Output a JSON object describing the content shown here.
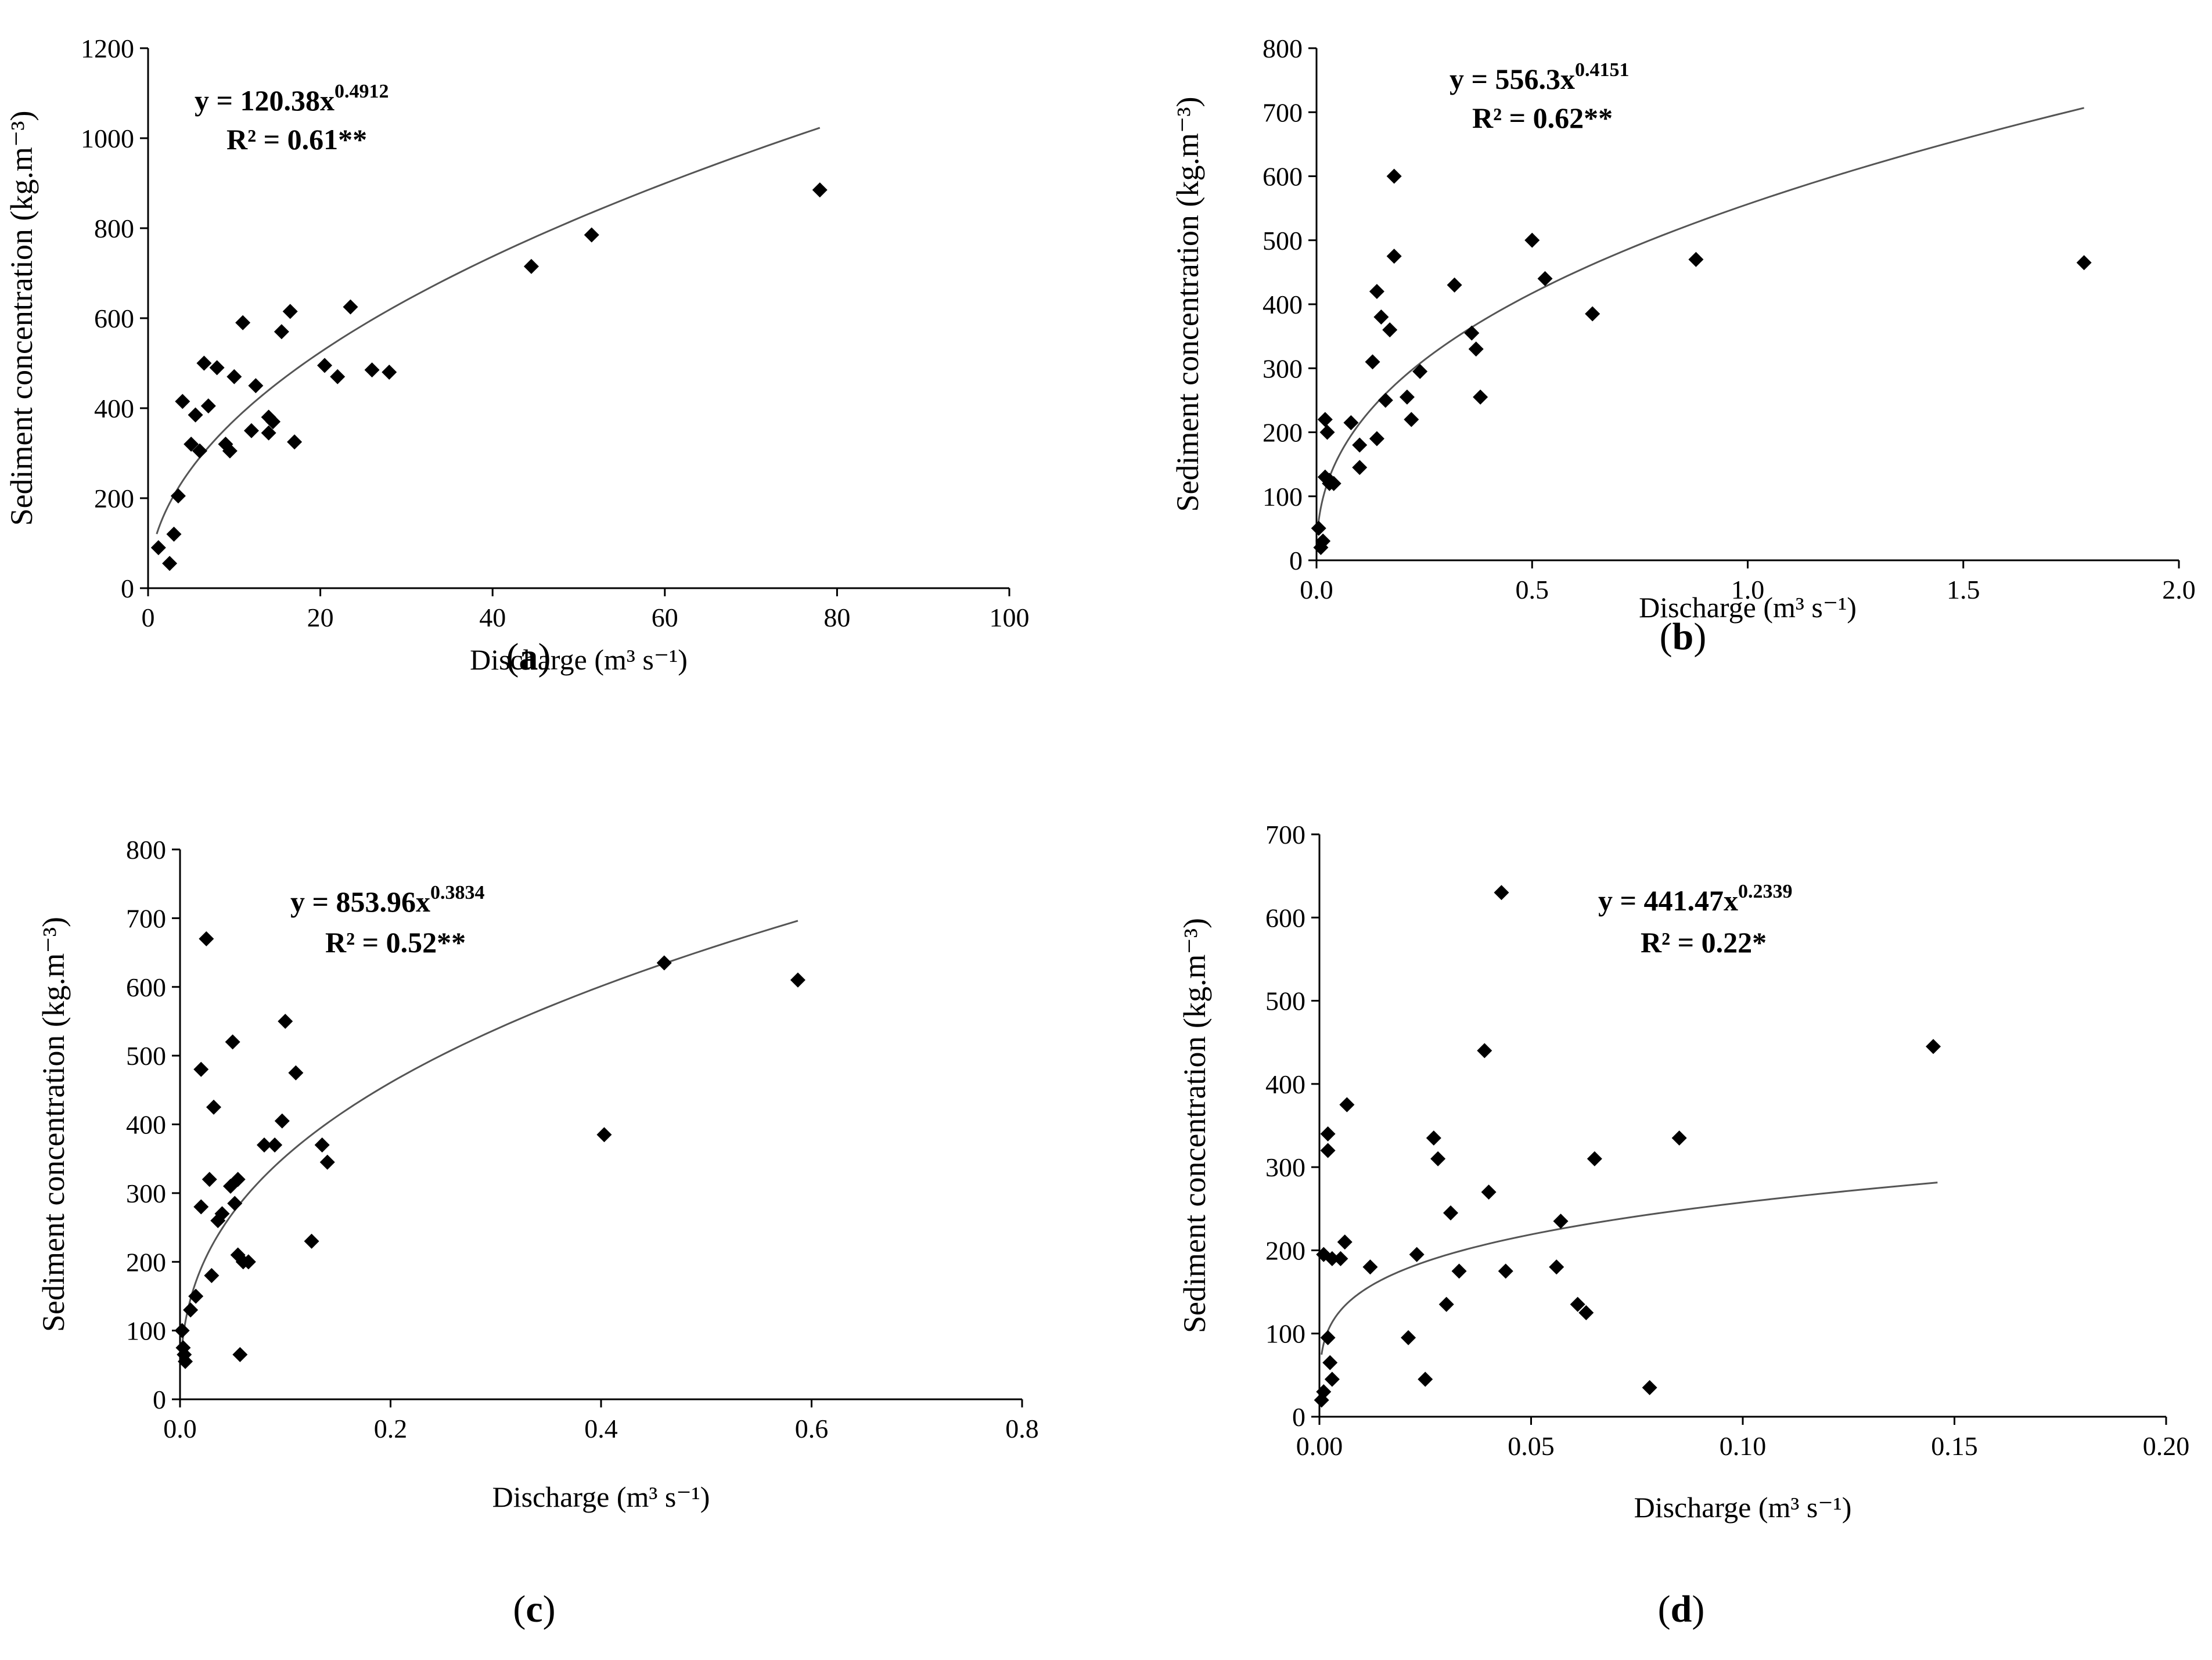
{
  "chart_data": [
    {
      "type": "scatter",
      "panel": "a",
      "panel_label": "a",
      "xlabel": "Discharge (m³ s⁻¹)",
      "ylabel": "Sediment concentration  (kg.m⁻³)",
      "xlim": [
        0,
        100
      ],
      "ylim": [
        0,
        1200
      ],
      "xticks": [
        0,
        20,
        40,
        60,
        80,
        100
      ],
      "xtick_labels": [
        "0",
        "20",
        "40",
        "60",
        "80",
        "100"
      ],
      "yticks": [
        0,
        200,
        400,
        600,
        800,
        1000,
        1200
      ],
      "ytick_labels": [
        "0",
        "200",
        "400",
        "600",
        "800",
        "1000",
        "1200"
      ],
      "equation": "y = 120.38x",
      "exponent_label": "0.4912",
      "r2": "R² = 0.61**",
      "fit": {
        "a": 120.38,
        "b": 0.4912,
        "xmin": 1,
        "xmax": 78
      },
      "x": [
        1.2,
        2.5,
        3,
        3.5,
        4,
        5,
        5.5,
        6,
        6.5,
        7,
        8,
        9,
        9.5,
        10,
        11,
        12,
        12.5,
        14,
        14,
        14.5,
        15.5,
        16.5,
        17,
        20.5,
        22,
        23.5,
        26,
        28,
        44.5,
        51.5,
        78
      ],
      "y": [
        90,
        55,
        120,
        205,
        415,
        320,
        385,
        305,
        500,
        405,
        490,
        320,
        305,
        470,
        590,
        350,
        450,
        345,
        380,
        370,
        570,
        615,
        325,
        495,
        470,
        625,
        485,
        480,
        715,
        785,
        885
      ]
    },
    {
      "type": "scatter",
      "panel": "b",
      "panel_label": "b",
      "xlabel": "Discharge (m³ s⁻¹)",
      "ylabel": "Sediment concentration  (kg.m⁻³)",
      "xlim": [
        0,
        2
      ],
      "ylim": [
        0,
        800
      ],
      "xticks": [
        0,
        0.5,
        1,
        1.5,
        2
      ],
      "xtick_labels": [
        "0.0",
        "0.5",
        "1.0",
        "1.5",
        "2.0"
      ],
      "yticks": [
        0,
        100,
        200,
        300,
        400,
        500,
        600,
        700,
        800
      ],
      "ytick_labels": [
        "0",
        "100",
        "200",
        "300",
        "400",
        "500",
        "600",
        "700",
        "800"
      ],
      "equation": "y = 556.3x",
      "exponent_label": "0.4151",
      "r2": "R² = 0.62**",
      "fit": {
        "a": 556.3,
        "b": 0.4151,
        "xmin": 0.003,
        "xmax": 1.78
      },
      "x": [
        0.005,
        0.01,
        0.015,
        0.02,
        0.02,
        0.025,
        0.03,
        0.03,
        0.04,
        0.08,
        0.1,
        0.1,
        0.13,
        0.14,
        0.14,
        0.15,
        0.16,
        0.17,
        0.18,
        0.18,
        0.21,
        0.22,
        0.24,
        0.32,
        0.36,
        0.37,
        0.38,
        0.5,
        0.53,
        0.64,
        0.88,
        1.78
      ],
      "y": [
        50,
        20,
        30,
        130,
        220,
        200,
        125,
        120,
        120,
        215,
        180,
        145,
        310,
        420,
        190,
        380,
        250,
        360,
        475,
        600,
        255,
        220,
        295,
        430,
        355,
        330,
        255,
        500,
        440,
        385,
        470,
        465
      ]
    },
    {
      "type": "scatter",
      "panel": "c",
      "panel_label": "c",
      "xlabel": "Discharge (m³ s⁻¹)",
      "ylabel": "Sediment concentration  (kg.m⁻³)",
      "xlim": [
        0,
        0.8
      ],
      "ylim": [
        0,
        800
      ],
      "xticks": [
        0,
        0.2,
        0.4,
        0.6,
        0.8
      ],
      "xtick_labels": [
        "0.0",
        "0.2",
        "0.4",
        "0.6",
        "0.8"
      ],
      "yticks": [
        0,
        100,
        200,
        300,
        400,
        500,
        600,
        700,
        800
      ],
      "ytick_labels": [
        "0",
        "100",
        "200",
        "300",
        "400",
        "500",
        "600",
        "700",
        "800"
      ],
      "equation": "y = 853.96x",
      "exponent_label": "0.3834",
      "r2": "R² = 0.52**",
      "fit": {
        "a": 853.96,
        "b": 0.3834,
        "xmin": 0.0015,
        "xmax": 0.587
      },
      "x": [
        0.002,
        0.003,
        0.004,
        0.005,
        0.01,
        0.015,
        0.02,
        0.02,
        0.025,
        0.028,
        0.03,
        0.032,
        0.036,
        0.04,
        0.048,
        0.05,
        0.052,
        0.055,
        0.055,
        0.057,
        0.06,
        0.065,
        0.08,
        0.09,
        0.097,
        0.1,
        0.11,
        0.125,
        0.135,
        0.14,
        0.403,
        0.46,
        0.587
      ],
      "y": [
        100,
        75,
        65,
        55,
        130,
        150,
        280,
        480,
        670,
        320,
        180,
        425,
        260,
        270,
        310,
        520,
        285,
        320,
        210,
        65,
        200,
        200,
        370,
        370,
        405,
        550,
        475,
        230,
        370,
        345,
        385,
        635,
        610
      ]
    },
    {
      "type": "scatter",
      "panel": "d",
      "panel_label": "d",
      "xlabel": "Discharge (m³ s⁻¹)",
      "ylabel": "Sediment concentration  (kg.m⁻³)",
      "xlim": [
        0,
        0.2
      ],
      "ylim": [
        0,
        700
      ],
      "xticks": [
        0,
        0.05,
        0.1,
        0.15,
        0.2
      ],
      "xtick_labels": [
        "0.00",
        "0.05",
        "0.10",
        "0.15",
        "0.20"
      ],
      "yticks": [
        0,
        100,
        200,
        300,
        400,
        500,
        600,
        700
      ],
      "ytick_labels": [
        "0",
        "100",
        "200",
        "300",
        "400",
        "500",
        "600",
        "700"
      ],
      "equation": "y = 441.47x",
      "exponent_label": "0.2339",
      "r2": "R² = 0.22*",
      "fit": {
        "a": 441.47,
        "b": 0.2339,
        "xmin": 0.0005,
        "xmax": 0.146
      },
      "x": [
        0.0005,
        0.001,
        0.001,
        0.002,
        0.002,
        0.002,
        0.0025,
        0.003,
        0.003,
        0.005,
        0.006,
        0.0065,
        0.012,
        0.021,
        0.023,
        0.025,
        0.027,
        0.028,
        0.03,
        0.031,
        0.033,
        0.039,
        0.04,
        0.043,
        0.044,
        0.056,
        0.057,
        0.061,
        0.063,
        0.065,
        0.078,
        0.085,
        0.145
      ],
      "y": [
        20,
        30,
        195,
        320,
        340,
        95,
        65,
        45,
        190,
        190,
        210,
        375,
        180,
        95,
        195,
        45,
        335,
        310,
        135,
        245,
        175,
        440,
        270,
        630,
        175,
        180,
        235,
        135,
        125,
        310,
        35,
        335,
        445
      ]
    }
  ]
}
